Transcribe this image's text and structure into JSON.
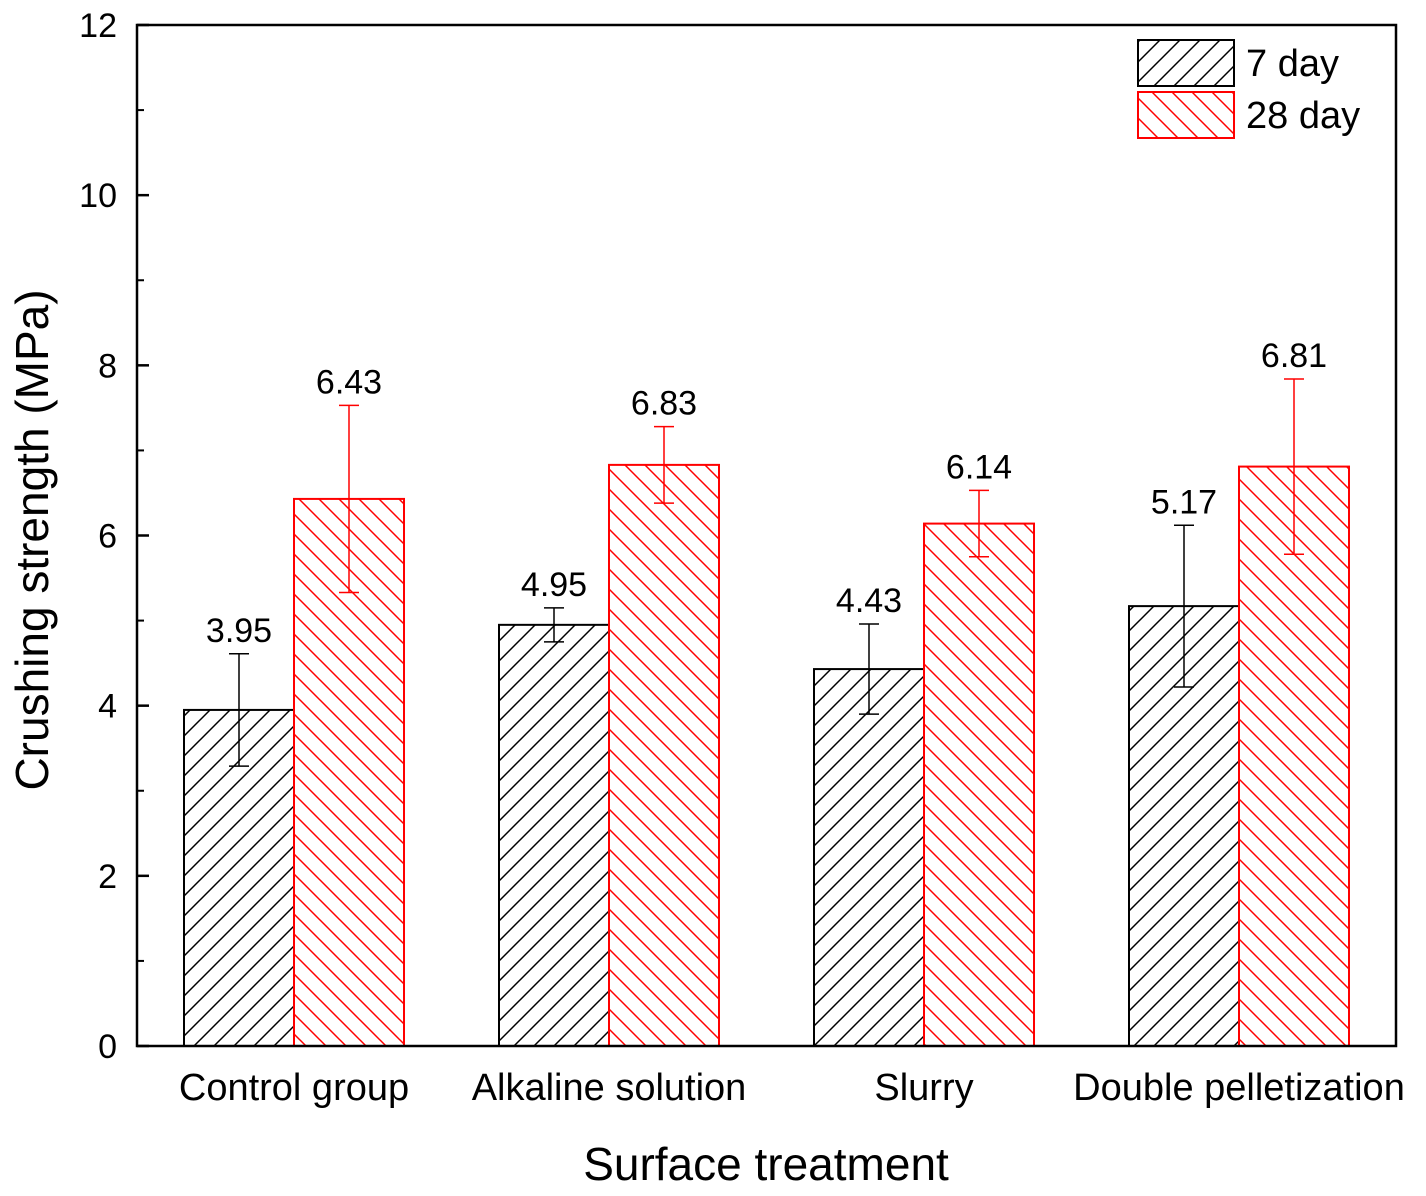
{
  "chart_data": {
    "type": "bar",
    "xlabel": "Surface treatment",
    "ylabel": "Crushing strength (MPa)",
    "ylim": [
      0,
      12
    ],
    "yticks": [
      0,
      2,
      4,
      6,
      8,
      10,
      12
    ],
    "categories": [
      "Control group",
      "Alkaline solution",
      "Slurry",
      "Double pelletization"
    ],
    "legend_position": "top-right",
    "series": [
      {
        "name": "7 day",
        "color": "#000000",
        "pattern": "forward-diagonal-hatch",
        "values": [
          3.95,
          4.95,
          4.43,
          5.17
        ],
        "labels": [
          "3.95",
          "4.95",
          "4.43",
          "5.17"
        ],
        "errors": [
          0.66,
          0.2,
          0.53,
          0.95
        ]
      },
      {
        "name": "28 day",
        "color": "#ff0000",
        "pattern": "backward-diagonal-hatch",
        "values": [
          6.43,
          6.83,
          6.14,
          6.81
        ],
        "labels": [
          "6.43",
          "6.83",
          "6.14",
          "6.81"
        ],
        "errors": [
          1.1,
          0.45,
          0.39,
          1.03
        ]
      }
    ]
  }
}
